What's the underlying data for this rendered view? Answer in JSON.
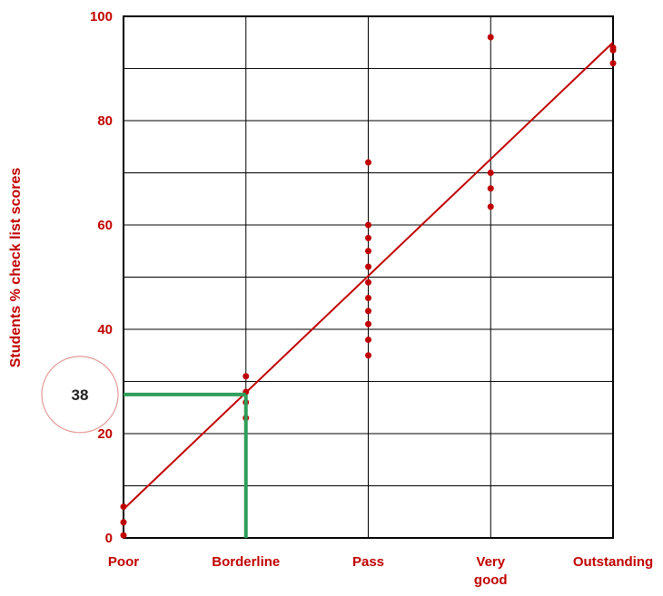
{
  "chart_data": {
    "type": "scatter",
    "ylabel": "Students % check list scores",
    "ylim": [
      0,
      100
    ],
    "yticks": [
      0,
      20,
      40,
      60,
      80,
      100
    ],
    "categories": [
      "Poor",
      "Borderline",
      "Pass",
      "Very good",
      "Outstanding"
    ],
    "x_positions": [
      0,
      1,
      2,
      3,
      4
    ],
    "grid": true,
    "points": {
      "x": [
        0,
        0,
        0,
        1,
        1,
        1,
        1,
        2,
        2,
        2,
        2,
        2,
        2,
        2,
        2,
        2,
        2,
        2,
        3,
        3,
        3,
        3,
        4,
        4,
        4
      ],
      "y": [
        6,
        3,
        0.5,
        31,
        28,
        26,
        23,
        60,
        57.5,
        55,
        52,
        49,
        46,
        43.5,
        41,
        38,
        35,
        72,
        70,
        67,
        63.5,
        96,
        93.5,
        91,
        94
      ]
    },
    "regression_line": {
      "x": [
        0,
        4
      ],
      "y": [
        5.5,
        95
      ]
    },
    "cut_score": {
      "label": "38",
      "x": 1,
      "y": 27.5
    },
    "colors": {
      "points": "#c00000",
      "line": "#c00000",
      "cut_score": "#2e9e5b",
      "text": "#c00000",
      "grid": "#000000"
    }
  }
}
